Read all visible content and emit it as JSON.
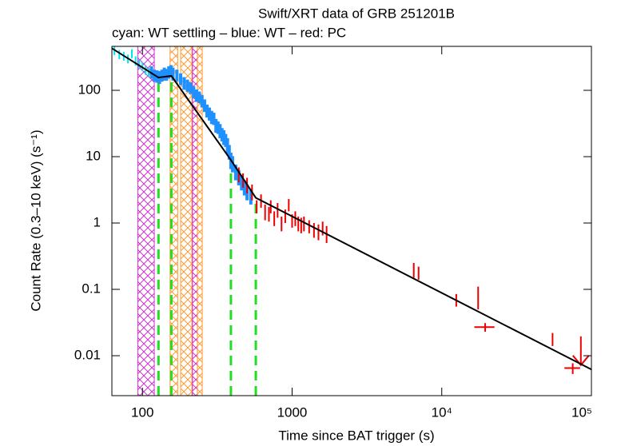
{
  "chart_data": {
    "type": "scatter",
    "title": "Swift/XRT data of GRB 251201B",
    "subtitle": "cyan: WT settling – blue: WT – red: PC",
    "x_label": "Time since BAT trigger (s)",
    "y_label": "Count Rate (0.3–10 keV) (s⁻¹)",
    "x_scale": "log",
    "y_scale": "log",
    "xlim": [
      62.5,
      100000
    ],
    "ylim": [
      0.0025,
      460
    ],
    "xticks": [
      100,
      1000,
      {
        "value": 10000,
        "label": "10⁴"
      },
      {
        "value": 100000,
        "label": "10⁵"
      }
    ],
    "yticks": [
      100,
      10,
      1,
      0.1,
      0.01
    ],
    "bands": [
      {
        "color": "#cc33cc",
        "x": [
          93,
          120
        ]
      },
      {
        "color": "#ff9933",
        "x": [
          153,
          172
        ]
      },
      {
        "color": "#ff9933",
        "x": [
          180,
          214
        ]
      },
      {
        "color": "#cc33cc",
        "x": [
          216,
          233
        ]
      },
      {
        "color": "#ff9933",
        "x": [
          233,
          251
        ]
      }
    ],
    "breaks": {
      "color": "#22dd22",
      "x": [
        128,
        156,
        390,
        572
      ]
    },
    "series": [
      {
        "color": "#00e5ee",
        "x": [
          65,
          70,
          75,
          80,
          85,
          90,
          95,
          100,
          105,
          110
        ],
        "values": [
          400,
          350,
          330,
          300,
          360,
          280,
          250,
          230,
          200,
          190
        ],
        "errors": [
          60,
          55,
          50,
          45,
          55,
          45,
          40,
          35,
          30,
          30
        ]
      },
      {
        "color": "#1e90ff",
        "x": [
          115,
          120,
          125,
          130,
          135,
          140,
          145,
          150,
          155,
          160,
          170,
          180,
          190,
          200,
          210,
          220,
          230,
          240,
          250,
          260,
          270,
          280,
          290,
          300,
          310,
          320,
          330,
          340,
          350,
          360,
          370,
          380,
          390,
          400,
          420,
          440,
          460,
          480,
          500,
          530
        ],
        "values": [
          190,
          170,
          165,
          160,
          170,
          180,
          175,
          190,
          200,
          180,
          170,
          150,
          130,
          120,
          110,
          95,
          85,
          80,
          70,
          60,
          50,
          45,
          40,
          38,
          30,
          28,
          25,
          22,
          20,
          18,
          15,
          12,
          9,
          8,
          6,
          5,
          4.2,
          3.5,
          3,
          2.6
        ],
        "errors": [
          40,
          35,
          35,
          35,
          35,
          40,
          35,
          40,
          40,
          40,
          35,
          30,
          28,
          25,
          22,
          20,
          18,
          16,
          15,
          13,
          11,
          10,
          9,
          8,
          7,
          6,
          6,
          5,
          5,
          4,
          4,
          3,
          2.5,
          2.2,
          1.6,
          1.3,
          1.1,
          0.9,
          0.8,
          0.7
        ]
      },
      {
        "color": "#ee0000",
        "x": [
          440,
          470,
          500,
          540,
          580,
          620,
          660,
          700,
          720,
          760,
          800,
          850,
          900,
          950,
          1000,
          1050,
          1100,
          1150,
          1200,
          1300,
          1400,
          1500,
          1600,
          1700,
          6500,
          7000,
          12500,
          17500,
          55000
        ],
        "values": [
          5.5,
          4.5,
          3.8,
          3,
          1.8,
          2.2,
          1.5,
          1.4,
          1.8,
          1.2,
          1.6,
          1,
          1.3,
          1.9,
          1.1,
          1.2,
          1,
          0.95,
          1,
          0.9,
          0.8,
          0.75,
          0.85,
          0.7,
          0.2,
          0.18,
          0.07,
          0.08,
          0.018
        ],
        "errors": [
          1.4,
          1.1,
          1,
          0.8,
          0.4,
          0.5,
          0.4,
          0.35,
          0.4,
          0.3,
          0.4,
          0.25,
          0.3,
          0.4,
          0.25,
          0.3,
          0.25,
          0.25,
          0.25,
          0.2,
          0.2,
          0.2,
          0.2,
          0.2,
          0.05,
          0.04,
          0.015,
          0.03,
          0.004
        ]
      },
      {
        "color": "#ee0000",
        "x": [
          19500,
          75000
        ],
        "values": [
          0.027,
          0.0065
        ],
        "errors": [
          0.004,
          0.0012
        ],
        "xerrors": [
          3000,
          9000
        ]
      }
    ],
    "upper_limit": {
      "color": "#ee0000",
      "x": 85000,
      "value": 0.009
    },
    "fit": {
      "color": "#000000",
      "x": [
        62.5,
        128,
        156,
        390,
        572,
        100000
      ],
      "values": [
        430,
        156,
        165,
        8.9,
        2.4,
        0.0062
      ]
    }
  }
}
